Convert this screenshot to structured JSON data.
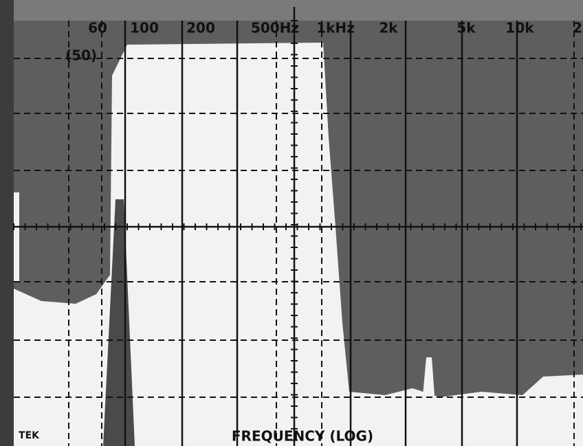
{
  "scale_labels": [
    "60",
    "100",
    "200",
    "500Hz",
    "1kHz",
    "2k",
    "5k",
    "10k",
    "2"
  ],
  "level_label": "(50)",
  "brand": "TEK",
  "axis_label": "FREQUENCY (LOG)"
}
